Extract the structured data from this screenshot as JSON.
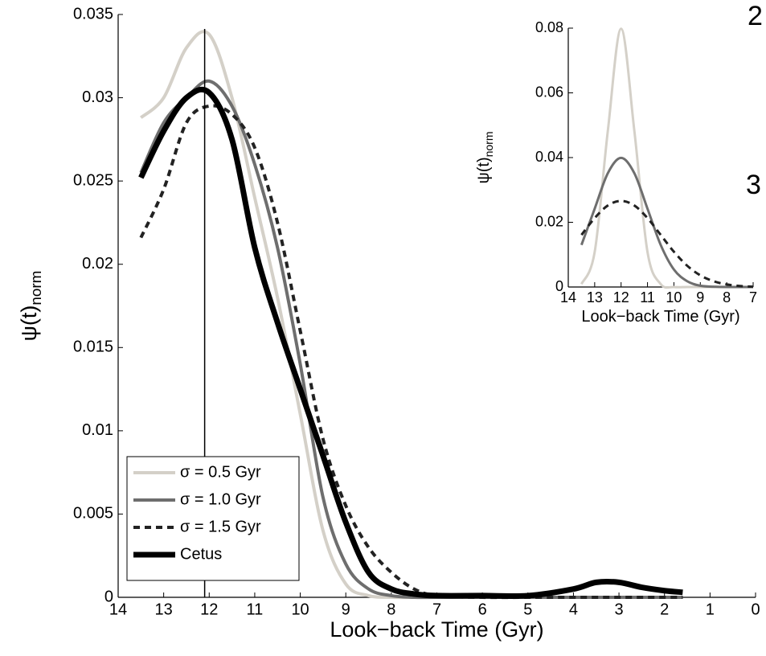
{
  "chart_data": [
    {
      "type": "line",
      "x_label": "Look−back Time (Gyr)",
      "y_label": "ψ(t)",
      "y_label_sub": "norm",
      "x": [
        13.5,
        13,
        12.5,
        12,
        11.5,
        11,
        10.5,
        10,
        9.5,
        9,
        8.5,
        8,
        7.5,
        7,
        6,
        5,
        4,
        3.5,
        3,
        2.5,
        2,
        1.6
      ],
      "series": [
        {
          "name": "σ = 0.5 Gyr",
          "color": "#d4d0c8",
          "dash": false,
          "width": 4,
          "values": [
            0.0288,
            0.03,
            0.033,
            0.0338,
            0.03,
            0.024,
            0.018,
            0.011,
            0.004,
            0.0008,
            0.0001,
            0,
            0,
            0,
            0,
            0,
            0,
            0,
            0,
            0,
            0,
            0
          ]
        },
        {
          "name": "σ = 1.0 Gyr",
          "color": "#6e6e6e",
          "dash": false,
          "width": 4,
          "values": [
            0.0255,
            0.0285,
            0.03,
            0.031,
            0.0295,
            0.026,
            0.021,
            0.014,
            0.006,
            0.002,
            0.0005,
            0.0001,
            0,
            0,
            0,
            0,
            0,
            0,
            0,
            0,
            0,
            0
          ]
        },
        {
          "name": "σ = 1.5 Gyr",
          "color": "#222222",
          "dash": true,
          "width": 4,
          "values": [
            0.0216,
            0.0245,
            0.0285,
            0.0295,
            0.029,
            0.027,
            0.0225,
            0.016,
            0.0095,
            0.0055,
            0.003,
            0.0015,
            0.0005,
            0.0001,
            0,
            0,
            0,
            0,
            0,
            0,
            0,
            0
          ]
        },
        {
          "name": "Cetus",
          "color": "#000000",
          "dash": false,
          "width": 7,
          "values": [
            0.0252,
            0.028,
            0.03,
            0.0303,
            0.0275,
            0.021,
            0.0165,
            0.0125,
            0.0085,
            0.0045,
            0.0015,
            0.0005,
            0.0002,
            0.0001,
            0.0001,
            0.0001,
            0.0005,
            0.0009,
            0.0009,
            0.0006,
            0.0004,
            0.0003
          ]
        }
      ],
      "vline": 12.1,
      "xlim": [
        14,
        0
      ],
      "xticks": [
        14,
        13,
        12,
        11,
        10,
        9,
        8,
        7,
        6,
        5,
        4,
        3,
        2,
        1,
        0
      ],
      "ylim": [
        0,
        0.035
      ],
      "yticks": [
        0,
        0.005,
        0.01,
        0.015,
        0.02,
        0.025,
        0.03,
        0.035
      ],
      "legend": "lower left"
    },
    {
      "type": "line",
      "x_label": "Look−back Time (Gyr)",
      "y_label": "ψ(t)",
      "y_label_sub": "norm",
      "x": [
        13.5,
        13,
        12.5,
        12,
        11.5,
        11,
        10.5,
        10,
        9.5,
        9,
        8.5,
        8,
        7.5,
        7
      ],
      "series": [
        {
          "color": "#d4d0c8",
          "dash": false,
          "width": 3,
          "values": [
            0.0009,
            0.0108,
            0.0484,
            0.0798,
            0.0484,
            0.0108,
            0.0009,
            0,
            0,
            0,
            0,
            0,
            0,
            0
          ]
        },
        {
          "color": "#6e6e6e",
          "dash": false,
          "width": 3,
          "values": [
            0.013,
            0.0242,
            0.0352,
            0.0399,
            0.0352,
            0.0242,
            0.013,
            0.0054,
            0.0018,
            0.0004,
            0.0001,
            0,
            0,
            0
          ]
        },
        {
          "color": "#222222",
          "dash": true,
          "width": 3,
          "values": [
            0.0161,
            0.0213,
            0.0252,
            0.0266,
            0.0252,
            0.0213,
            0.0161,
            0.0109,
            0.0066,
            0.0036,
            0.0018,
            0.0008,
            0.0003,
            0.0001
          ]
        }
      ],
      "xlim": [
        14,
        7
      ],
      "xticks": [
        14,
        13,
        12,
        11,
        10,
        9,
        8,
        7
      ],
      "ylim": [
        0,
        0.08
      ],
      "yticks": [
        0,
        0.02,
        0.04,
        0.06,
        0.08
      ]
    }
  ],
  "fragments": [
    "2",
    "3"
  ]
}
